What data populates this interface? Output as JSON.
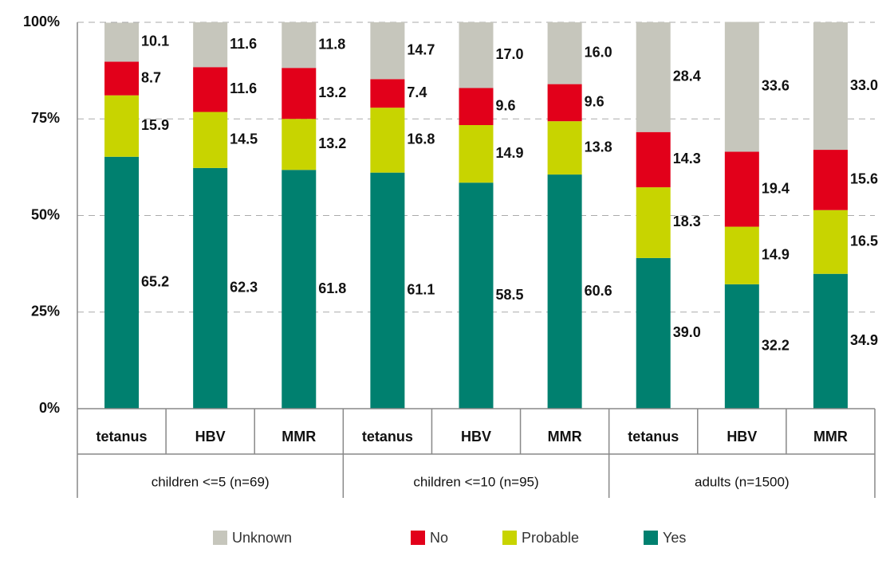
{
  "chart_data": {
    "type": "stacked_bar",
    "categories": [
      "tetanus",
      "HBV",
      "MMR",
      "tetanus",
      "HBV",
      "MMR",
      "tetanus",
      "HBV",
      "MMR"
    ],
    "groups": [
      "children <=5 (n=69)",
      "children <=10 (n=95)",
      "adults (n=1500)"
    ],
    "series": [
      {
        "name": "Yes",
        "color": "#00806f",
        "values": [
          65.2,
          62.3,
          61.8,
          61.1,
          58.5,
          60.6,
          39.0,
          32.2,
          34.9
        ],
        "value_labels": [
          "65.2",
          "62.3",
          "61.8",
          "61.1",
          "58.5",
          "60.6",
          "39.0",
          "32.2",
          "34.9"
        ]
      },
      {
        "name": "Probable",
        "color": "#c8d400",
        "values": [
          15.9,
          14.5,
          13.2,
          16.8,
          14.9,
          13.8,
          18.3,
          14.9,
          16.5
        ],
        "value_labels": [
          "15.9",
          "14.5",
          "13.2",
          "16.8",
          "14.9",
          "13.8",
          "18.3",
          "14.9",
          "16.5"
        ]
      },
      {
        "name": "No",
        "color": "#e2001a",
        "values": [
          8.7,
          11.6,
          13.2,
          7.4,
          9.6,
          9.6,
          14.3,
          19.4,
          15.6
        ],
        "value_labels": [
          "8.7",
          "11.6",
          "13.2",
          "7.4",
          "9.6",
          "9.6",
          "14.3",
          "19.4",
          "15.6"
        ]
      },
      {
        "name": "Unknown",
        "color": "#c6c6bc",
        "values": [
          10.1,
          11.6,
          11.8,
          14.7,
          17.0,
          16.0,
          28.4,
          33.6,
          33.0
        ],
        "value_labels": [
          "10.1",
          "11.6",
          "11.8",
          "14.7",
          "17.0",
          "16.0",
          "28.4",
          "33.6",
          "33.0"
        ]
      }
    ],
    "ylim": [
      0,
      100
    ],
    "yticks": [
      {
        "value": 0,
        "label": "0%"
      },
      {
        "value": 25,
        "label": "25%"
      },
      {
        "value": 50,
        "label": "50%"
      },
      {
        "value": 75,
        "label": "75%"
      },
      {
        "value": 100,
        "label": "100%"
      }
    ],
    "grid": true,
    "legend": "bottom"
  }
}
